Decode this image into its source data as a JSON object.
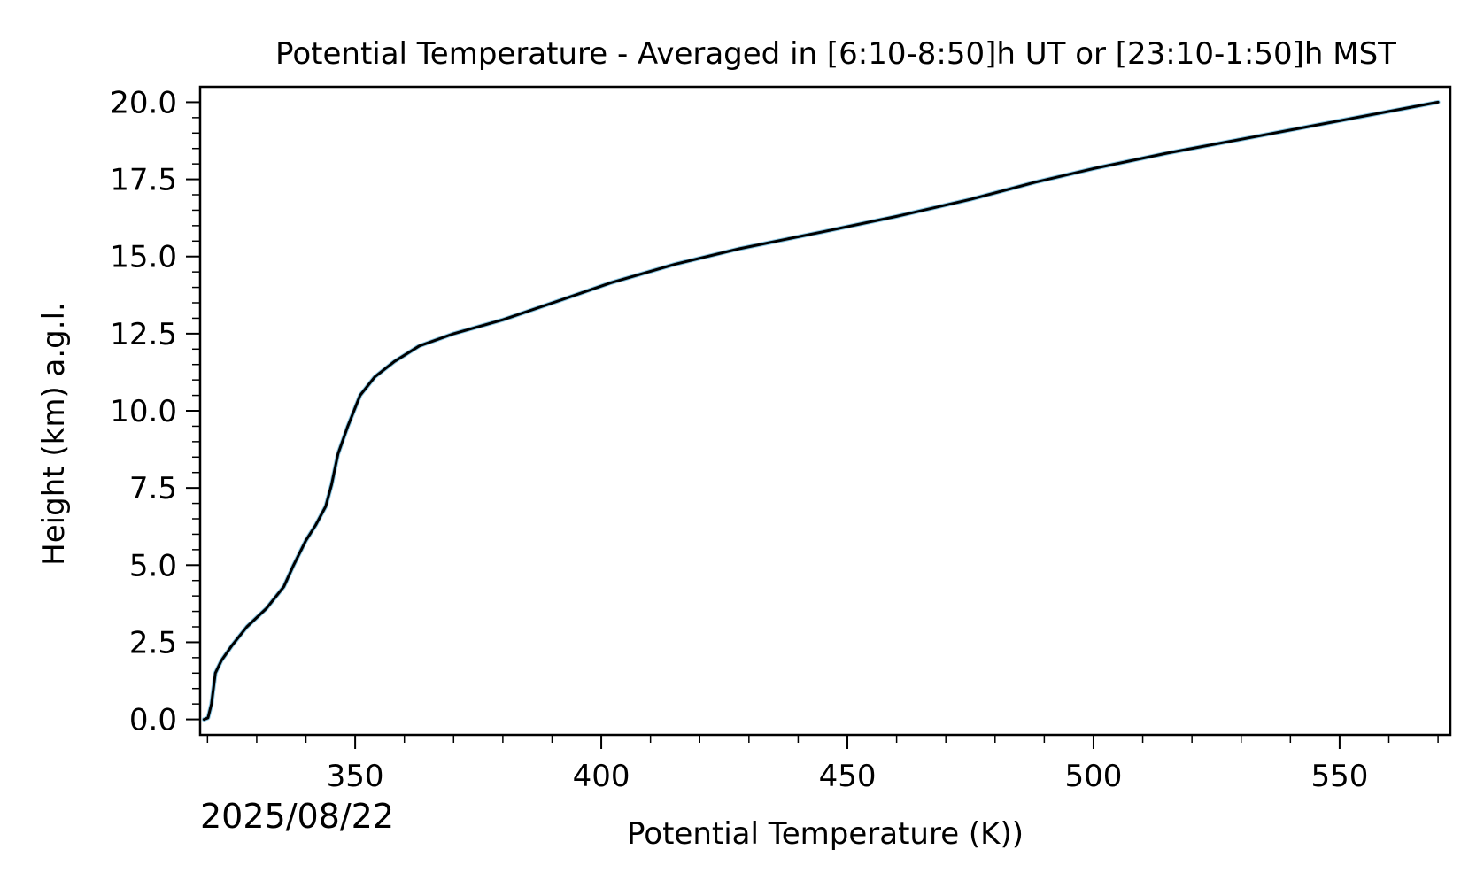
{
  "chart_data": {
    "type": "line",
    "title": "Potential Temperature - Averaged in [6:10-8:50]h UT or [23:10-1:50]h MST",
    "xlabel": "Potential Temperature (K))",
    "ylabel": "Height (km) a.g.l.",
    "date": "2025/08/22",
    "xlim": [
      318.5,
      572.5
    ],
    "ylim": [
      -0.5,
      20.5
    ],
    "x_ticks": [
      350,
      400,
      450,
      500,
      550
    ],
    "x_tick_labels": [
      "350",
      "400",
      "450",
      "500",
      "550"
    ],
    "y_ticks": [
      0.0,
      2.5,
      5.0,
      7.5,
      10.0,
      12.5,
      15.0,
      17.5,
      20.0
    ],
    "y_tick_labels": [
      "0.0",
      "2.5",
      "5.0",
      "7.5",
      "10.0",
      "12.5",
      "15.0",
      "17.5",
      "20.0"
    ],
    "grid": false,
    "series": [
      {
        "color": "#000000",
        "shadow_color": "#8ecae6",
        "x": [
          319.3,
          320.1,
          320.8,
          321.6,
          322.8,
          325,
          328,
          332,
          335.5,
          337.5,
          340,
          342,
          344,
          345.2,
          346.5,
          348.5,
          351,
          354,
          358,
          363,
          370,
          380,
          392,
          402,
          415,
          428,
          445,
          460,
          475,
          488,
          500,
          515,
          530,
          545,
          560,
          570
        ],
        "y": [
          0.0,
          0.05,
          0.5,
          1.5,
          1.9,
          2.4,
          3.0,
          3.6,
          4.3,
          5.0,
          5.8,
          6.3,
          6.9,
          7.6,
          8.6,
          9.5,
          10.5,
          11.1,
          11.6,
          12.1,
          12.5,
          12.95,
          13.6,
          14.15,
          14.75,
          15.25,
          15.8,
          16.3,
          16.85,
          17.4,
          17.85,
          18.35,
          18.8,
          19.25,
          19.7,
          20.0
        ]
      }
    ]
  }
}
